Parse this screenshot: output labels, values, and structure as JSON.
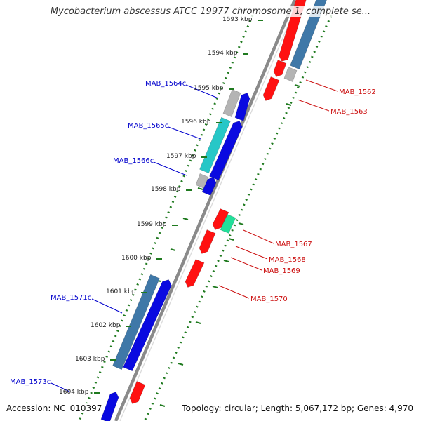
{
  "title": "Mycobacterium abscessus ATCC 19977 chromosome 1, complete se...",
  "footer": {
    "accession": "Accession: NC_010397",
    "summary": "Topology: circular; Length: 5,067,172 bp; Genes: 4,970"
  },
  "ruler": {
    "tick_labels": [
      "1593 kbp",
      "1594 kbp",
      "1595 kbp",
      "1596 kbp",
      "1597 kbp",
      "1598 kbp",
      "1599 kbp",
      "1600 kbp",
      "1601 kbp",
      "1602 kbp",
      "1603 kbp",
      "1604 kbp"
    ]
  },
  "colors": {
    "backbone": "#8a8a8a",
    "forward_gene": "#ff1111",
    "reverse_gene": "#0a0ae0",
    "pale_gray": "#b4b4b4",
    "steel_blue": "#3f78a8",
    "cyan": "#27c7c7",
    "sea_green": "#22e09a",
    "dotted_track": "#1f7a1f",
    "forward_label": "#cc1111",
    "reverse_label": "#0000cc"
  },
  "features": [
    {
      "name": "MAB_1562",
      "strand": "forward"
    },
    {
      "name": "MAB_1563",
      "strand": "forward"
    },
    {
      "name": "MAB_1564c",
      "strand": "reverse"
    },
    {
      "name": "MAB_1565c",
      "strand": "reverse"
    },
    {
      "name": "MAB_1566c",
      "strand": "reverse"
    },
    {
      "name": "MAB_1567",
      "strand": "forward"
    },
    {
      "name": "MAB_1568",
      "strand": "forward"
    },
    {
      "name": "MAB_1569",
      "strand": "forward"
    },
    {
      "name": "MAB_1570",
      "strand": "forward"
    },
    {
      "name": "MAB_1571c",
      "strand": "reverse"
    },
    {
      "name": "MAB_1573c",
      "strand": "reverse"
    }
  ]
}
